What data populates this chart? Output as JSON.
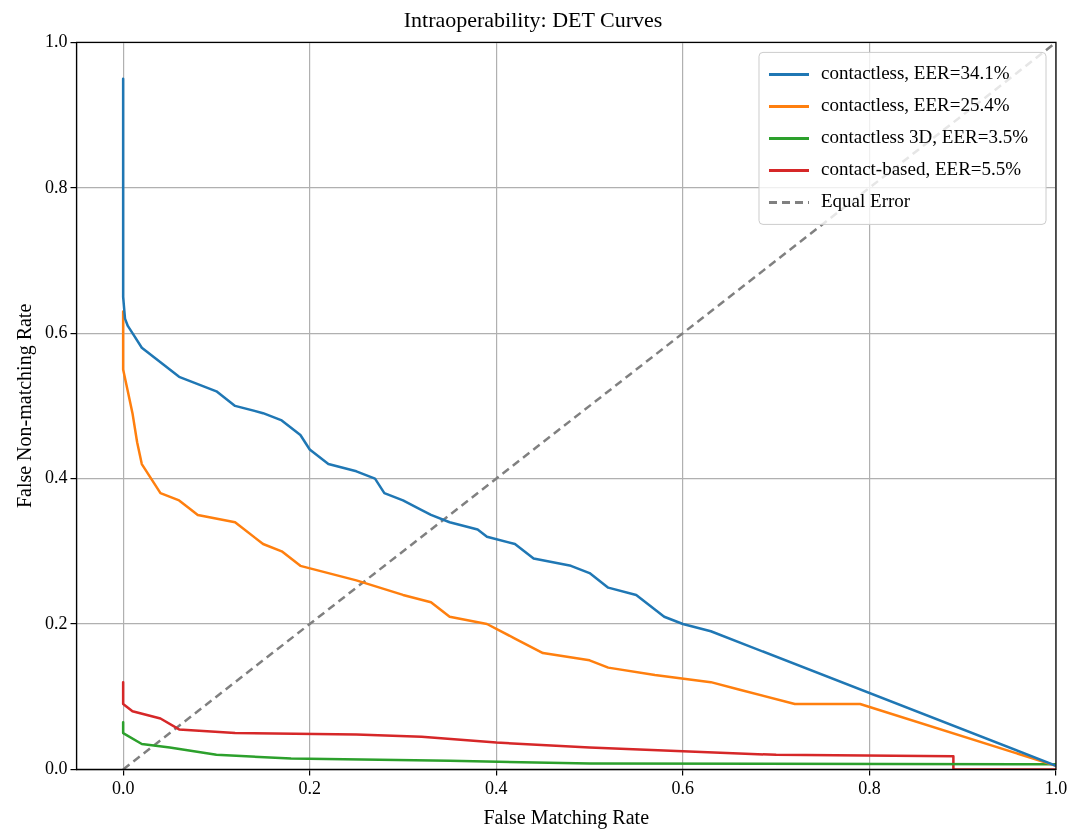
{
  "chart_data": {
    "type": "line",
    "title": "Intraoperability: DET Curves",
    "xlabel": "False Matching Rate",
    "ylabel": "False Non-matching Rate",
    "xlim": [
      -0.05,
      1.0
    ],
    "ylim": [
      0,
      1.0
    ],
    "xticks": [
      {
        "value": 0,
        "label": "0.0"
      },
      {
        "value": 0.2,
        "label": "0.2"
      },
      {
        "value": 0.4,
        "label": "0.4"
      },
      {
        "value": 0.6,
        "label": "0.6"
      },
      {
        "value": 0.8,
        "label": "0.8"
      },
      {
        "value": 1,
        "label": "1.0"
      }
    ],
    "yticks": [
      {
        "value": 0,
        "label": "0.0"
      },
      {
        "value": 0.2,
        "label": "0.2"
      },
      {
        "value": 0.4,
        "label": "0.4"
      },
      {
        "value": 0.6,
        "label": "0.6"
      },
      {
        "value": 0.8,
        "label": "0.8"
      },
      {
        "value": 1,
        "label": "1.0"
      }
    ],
    "grid": true,
    "legend": "top right",
    "marker": "none",
    "series": [
      {
        "name": "contactless, EER=34.1%",
        "color": "#1f77b4",
        "x": [
          0,
          0,
          0.002,
          0.005,
          0.01,
          0.02,
          0.04,
          0.06,
          0.08,
          0.1,
          0.12,
          0.15,
          0.17,
          0.19,
          0.2,
          0.22,
          0.25,
          0.27,
          0.28,
          0.3,
          0.33,
          0.35,
          0.38,
          0.39,
          0.42,
          0.44,
          0.48,
          0.5,
          0.52,
          0.55,
          0.57,
          0.58,
          0.6,
          0.63,
          1.0
        ],
        "values": [
          0.95,
          0.65,
          0.62,
          0.61,
          0.6,
          0.58,
          0.56,
          0.54,
          0.53,
          0.52,
          0.5,
          0.49,
          0.48,
          0.46,
          0.44,
          0.42,
          0.41,
          0.4,
          0.38,
          0.37,
          0.35,
          0.34,
          0.33,
          0.32,
          0.31,
          0.29,
          0.28,
          0.27,
          0.25,
          0.24,
          0.22,
          0.21,
          0.2,
          0.19,
          0.005
        ]
      },
      {
        "name": "contactless, EER=25.4%",
        "color": "#ff7f0e",
        "x": [
          0,
          0,
          0.005,
          0.01,
          0.015,
          0.02,
          0.03,
          0.04,
          0.06,
          0.08,
          0.12,
          0.15,
          0.17,
          0.19,
          0.22,
          0.25,
          0.3,
          0.33,
          0.35,
          0.39,
          0.42,
          0.45,
          0.5,
          0.52,
          0.57,
          0.63,
          0.66,
          0.72,
          0.79,
          1.0
        ],
        "values": [
          0.63,
          0.55,
          0.52,
          0.49,
          0.45,
          0.42,
          0.4,
          0.38,
          0.37,
          0.35,
          0.34,
          0.31,
          0.3,
          0.28,
          0.27,
          0.26,
          0.24,
          0.23,
          0.21,
          0.2,
          0.18,
          0.16,
          0.15,
          0.14,
          0.13,
          0.12,
          0.11,
          0.09,
          0.09,
          0.005
        ]
      },
      {
        "name": "contactless 3D, EER=3.5%",
        "color": "#2ca02c",
        "x": [
          0,
          0,
          0.02,
          0.05,
          0.1,
          0.18,
          0.35,
          0.5,
          1.0
        ],
        "values": [
          0.065,
          0.05,
          0.035,
          0.03,
          0.02,
          0.015,
          0.012,
          0.008,
          0.007
        ]
      },
      {
        "name": "contact-based, EER=5.5%",
        "color": "#d62728",
        "x": [
          0,
          0,
          0.01,
          0.04,
          0.06,
          0.12,
          0.25,
          0.32,
          0.4,
          0.5,
          0.6,
          0.7,
          0.89,
          0.89,
          1.0
        ],
        "values": [
          0.12,
          0.09,
          0.08,
          0.07,
          0.055,
          0.05,
          0.048,
          0.045,
          0.037,
          0.03,
          0.025,
          0.02,
          0.018,
          0.0,
          0.0
        ]
      },
      {
        "name": "Equal Error",
        "color": "#808080",
        "line_style": "dashed",
        "x": [
          0,
          1
        ],
        "values": [
          0,
          1
        ]
      }
    ]
  }
}
